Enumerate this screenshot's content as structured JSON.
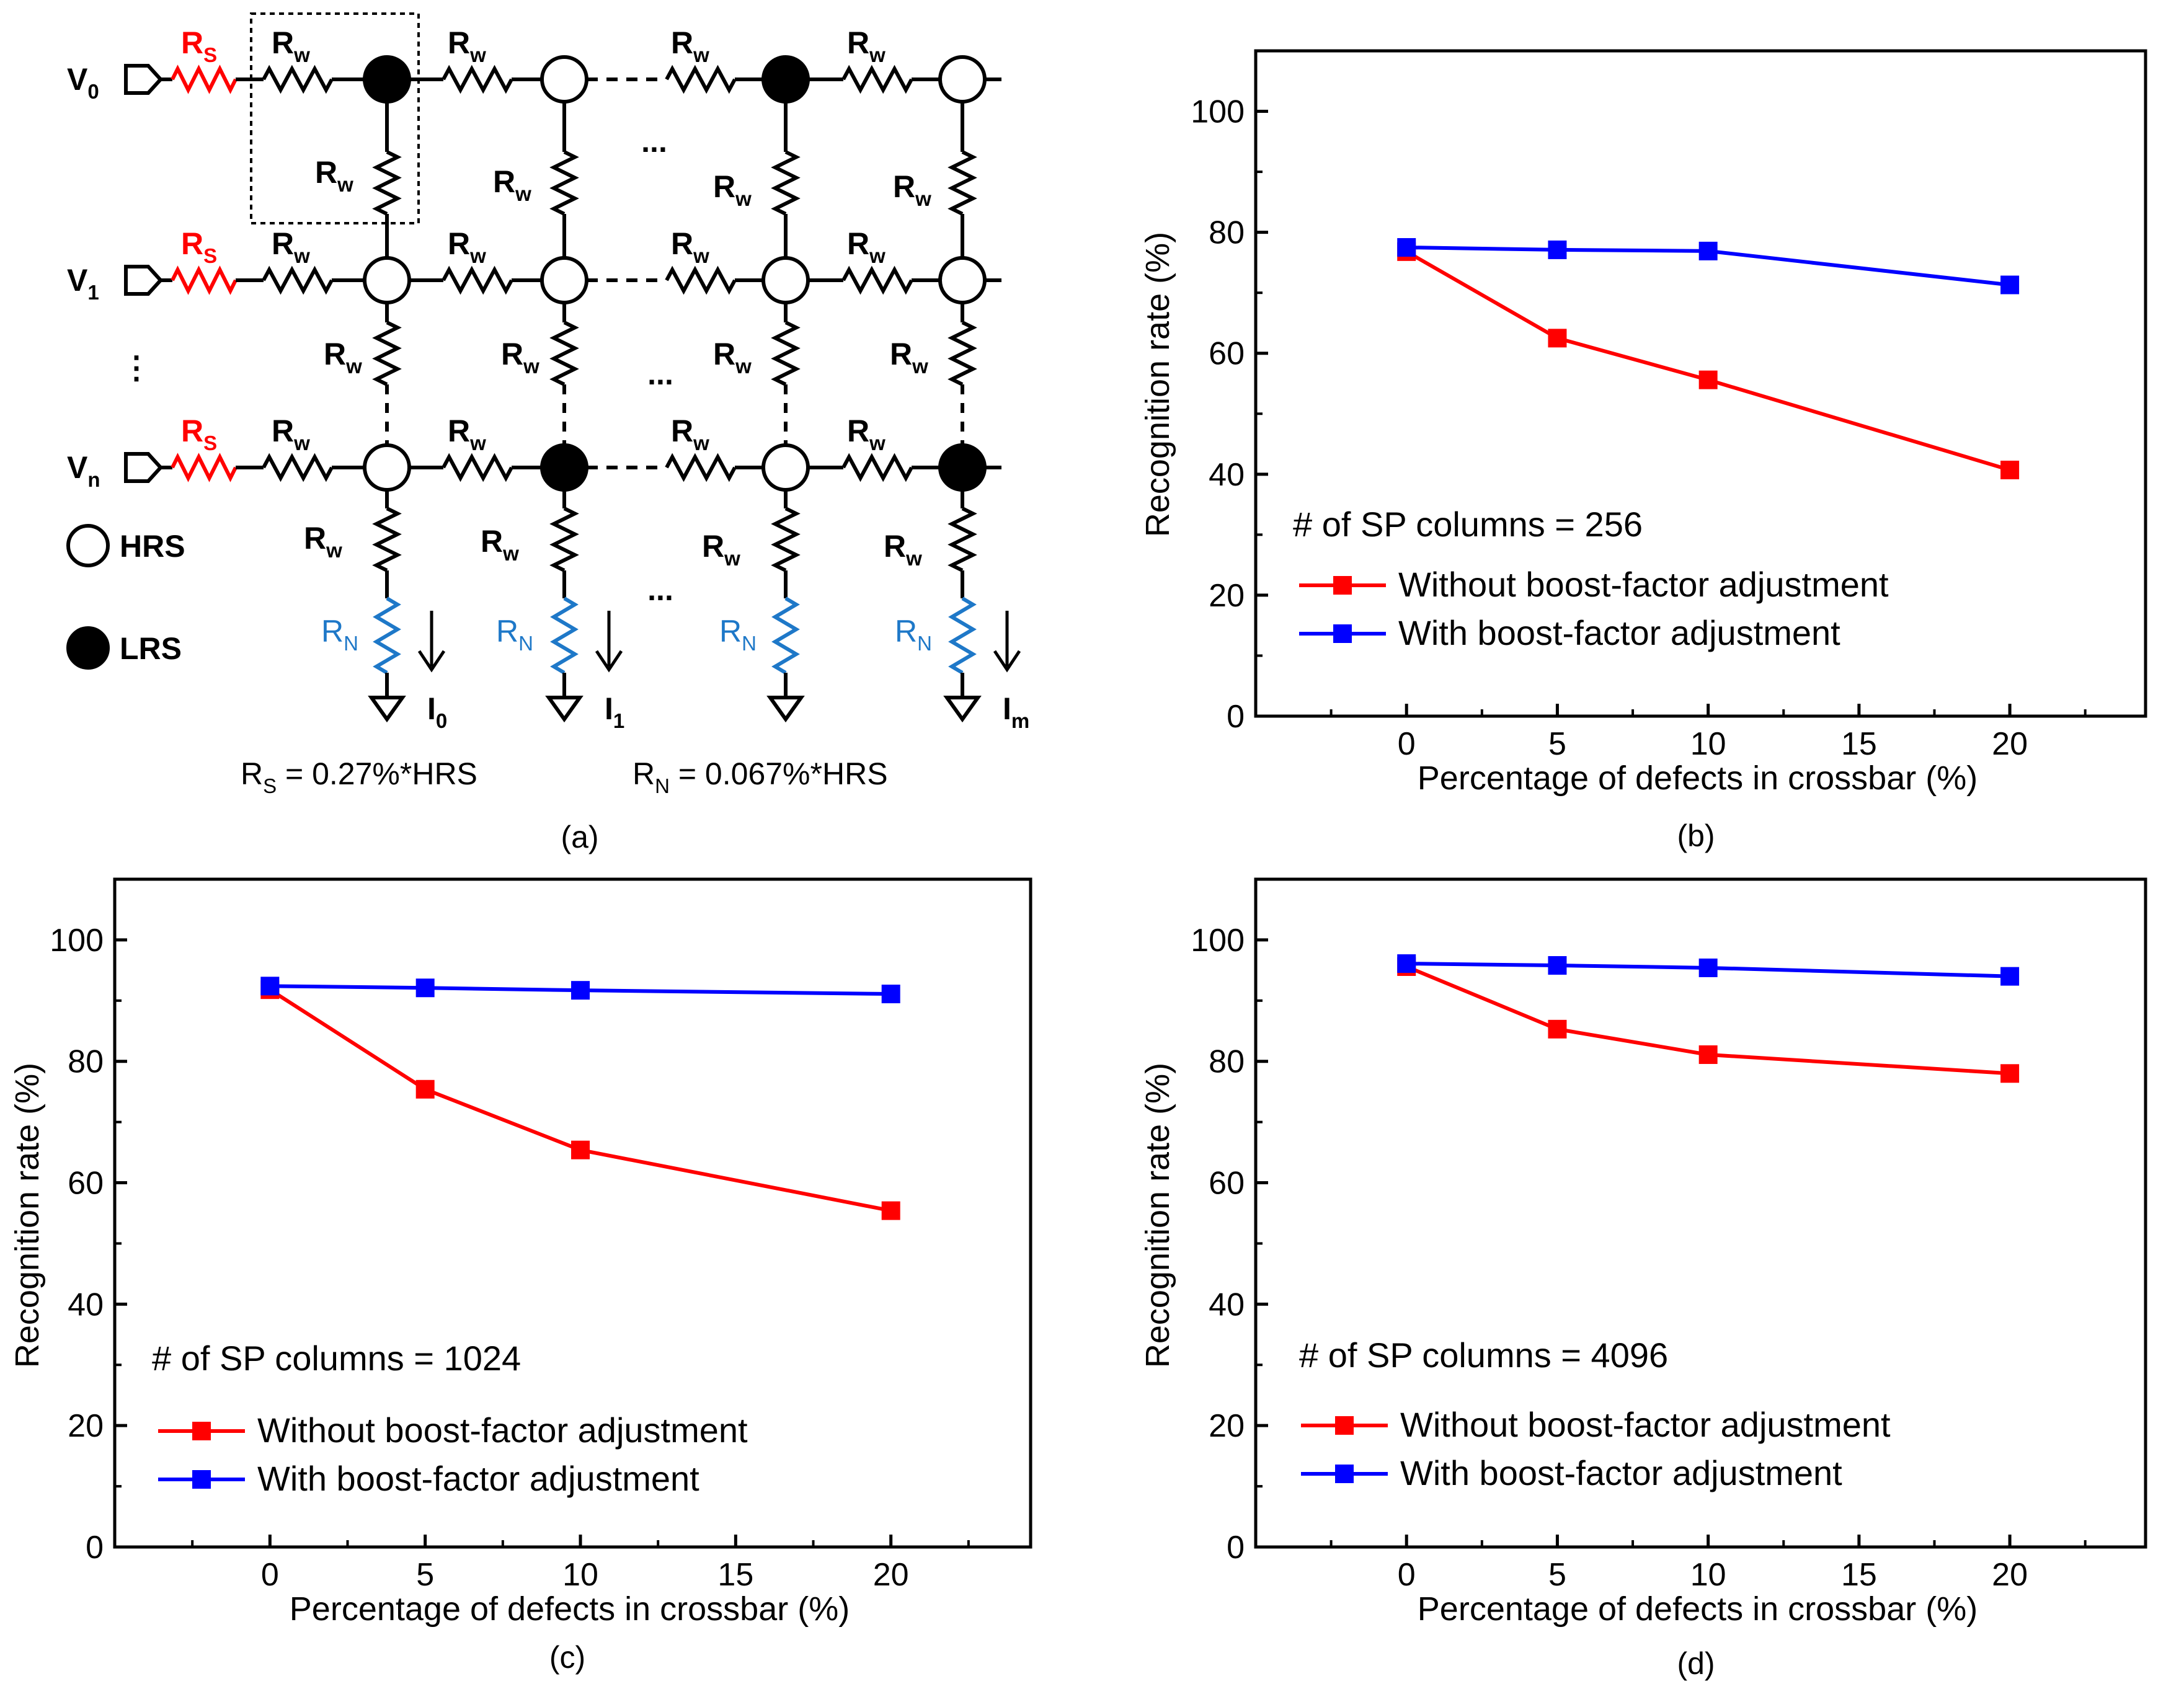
{
  "colors": {
    "series_without": "#ff0000",
    "series_with": "#0000ff",
    "rs_resistor": "#ff0000",
    "rn_resistor": "#1e78c8",
    "wire": "#000000"
  },
  "circuit": {
    "caption": "(a)",
    "rows": [
      {
        "base": "V",
        "sub": "0"
      },
      {
        "base": "V",
        "sub": "1"
      },
      {
        "base": "V",
        "sub": "n"
      }
    ],
    "rs_label": {
      "base": "R",
      "sub": "S"
    },
    "rw_label": {
      "base": "R",
      "sub": "w"
    },
    "rn_label": {
      "base": "R",
      "sub": "N"
    },
    "currents": [
      {
        "base": "I",
        "sub": "0"
      },
      {
        "base": "I",
        "sub": "1"
      },
      {
        "base": "I",
        "sub": "m"
      }
    ],
    "ellipsis": "...",
    "vertical_ellipsis": "⋮",
    "legend_hrs": "HRS",
    "legend_lrs": "LRS",
    "rs_eq": {
      "base": "R",
      "sub": "S",
      "rest": " = 0.27%*HRS"
    },
    "rn_eq": {
      "base": "R",
      "sub": "N",
      "rest": " = 0.067%*HRS"
    },
    "states": [
      [
        "LRS",
        "HRS",
        "LRS",
        "HRS"
      ],
      [
        "HRS",
        "HRS",
        "HRS",
        "HRS"
      ],
      [
        "HRS",
        "LRS",
        "HRS",
        "LRS"
      ]
    ]
  },
  "chart_data": [
    {
      "panel": "(b)",
      "type": "line",
      "xlabel": "Percentage of defects in crossbar (%)",
      "ylabel": "Recognition rate (%)",
      "xlim": [
        -5,
        24.5
      ],
      "ylim": [
        0,
        110
      ],
      "xticks": [
        0,
        5,
        10,
        15,
        20
      ],
      "yticks": [
        0,
        20,
        40,
        60,
        80,
        100
      ],
      "annotation": "# of SP columns = 256",
      "x": [
        0,
        5,
        10,
        20
      ],
      "series": [
        {
          "name": "Without boost-factor adjustment",
          "color": "#ff0000",
          "values": [
            76.8,
            62.5,
            55.6,
            40.7
          ]
        },
        {
          "name": "With boost-factor adjustment",
          "color": "#0000ff",
          "values": [
            77.5,
            77.1,
            76.9,
            71.3
          ]
        }
      ],
      "legend_position": "lower-left",
      "grid": false
    },
    {
      "panel": "(c)",
      "type": "line",
      "xlabel": "Percentage of defects in crossbar (%)",
      "ylabel": "Recognition rate (%)",
      "xlim": [
        -5,
        24.5
      ],
      "ylim": [
        0,
        110
      ],
      "xticks": [
        0,
        5,
        10,
        15,
        20
      ],
      "yticks": [
        0,
        20,
        40,
        60,
        80,
        100
      ],
      "annotation": "# of SP columns = 1024",
      "x": [
        0,
        5,
        10,
        20
      ],
      "series": [
        {
          "name": "Without boost-factor adjustment",
          "color": "#ff0000",
          "values": [
            91.8,
            75.4,
            65.4,
            55.4
          ]
        },
        {
          "name": "With boost-factor adjustment",
          "color": "#0000ff",
          "values": [
            92.4,
            92.1,
            91.7,
            91.1
          ]
        }
      ],
      "legend_position": "lower-left",
      "grid": false
    },
    {
      "panel": "(d)",
      "type": "line",
      "xlabel": "Percentage of defects in crossbar (%)",
      "ylabel": "Recognition rate (%)",
      "xlim": [
        -5,
        24.5
      ],
      "ylim": [
        0,
        110
      ],
      "xticks": [
        0,
        5,
        10,
        15,
        20
      ],
      "yticks": [
        0,
        20,
        40,
        60,
        80,
        100
      ],
      "annotation": "# of SP columns = 4096",
      "x": [
        0,
        5,
        10,
        20
      ],
      "series": [
        {
          "name": "Without boost-factor adjustment",
          "color": "#ff0000",
          "values": [
            95.6,
            85.3,
            81.1,
            78.0
          ]
        },
        {
          "name": "With boost-factor adjustment",
          "color": "#0000ff",
          "values": [
            96.1,
            95.8,
            95.4,
            94.0
          ]
        }
      ],
      "legend_position": "lower-left",
      "grid": false
    }
  ]
}
